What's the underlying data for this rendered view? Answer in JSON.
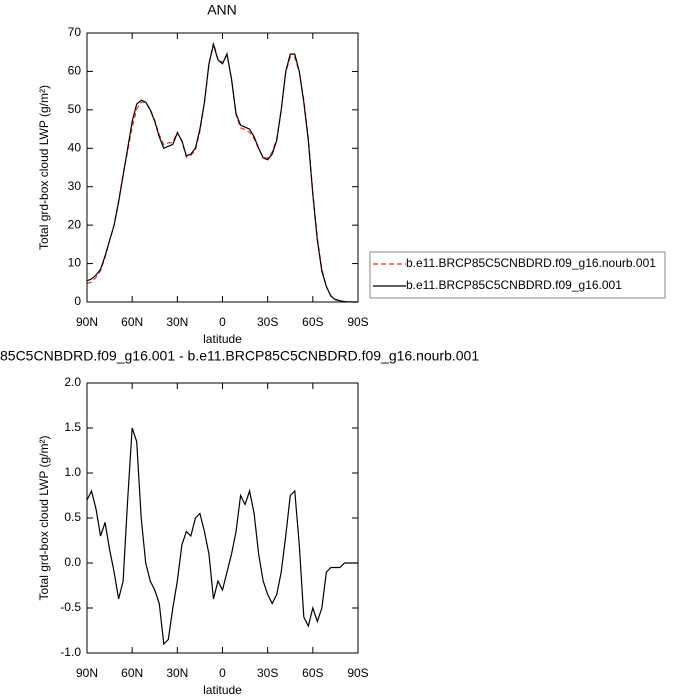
{
  "chart_data": [
    {
      "type": "line",
      "title": "ANN",
      "xlabel": "latitude",
      "ylabel": "Total grd-box cloud LWP (g/m²)",
      "x": [
        90,
        87,
        84,
        81,
        78,
        75,
        72,
        69,
        66,
        63,
        60,
        57,
        54,
        51,
        48,
        45,
        42,
        39,
        36,
        33,
        30,
        27,
        24,
        21,
        18,
        15,
        12,
        9,
        6,
        3,
        0,
        -3,
        -6,
        -9,
        -12,
        -15,
        -18,
        -21,
        -24,
        -27,
        -30,
        -33,
        -36,
        -39,
        -42,
        -45,
        -48,
        -51,
        -54,
        -57,
        -60,
        -63,
        -66,
        -69,
        -72,
        -75,
        -78,
        -81,
        -84,
        -87,
        -90
      ],
      "xlim": [
        90,
        -90
      ],
      "xticks": [
        {
          "value": 90,
          "label": "90N"
        },
        {
          "value": 60,
          "label": "60N"
        },
        {
          "value": 30,
          "label": "30N"
        },
        0,
        {
          "value": -30,
          "label": "30S"
        },
        {
          "value": -60,
          "label": "60S"
        },
        {
          "value": -90,
          "label": "90S"
        }
      ],
      "ylim": [
        0,
        70
      ],
      "yticks": [
        0,
        10,
        20,
        30,
        40,
        50,
        60,
        70
      ],
      "legend": "outside-right",
      "series": [
        {
          "name": "b.e11.BRCP85C5CNBDRD.f09_g16.nourb.001",
          "color": "#e0302c",
          "linestyle": "dashed",
          "values": [
            4.8,
            5.2,
            6.4,
            8.2,
            11.6,
            15.9,
            20.1,
            26.4,
            33.2,
            39.3,
            45.5,
            50.2,
            52.0,
            52.0,
            50.2,
            47.3,
            43.5,
            40.9,
            41.4,
            41.5,
            44.2,
            41.8,
            37.7,
            38.2,
            39.5,
            44.5,
            51.7,
            61.9,
            67.4,
            63.2,
            62.3,
            64.6,
            57.9,
            48.7,
            45.3,
            44.9,
            44.2,
            42.5,
            39.9,
            37.7,
            37.4,
            39.0,
            42.4,
            50.1,
            59.7,
            63.8,
            63.7,
            59.8,
            52.6,
            42.7,
            28.5,
            16.7,
            8.5,
            4.1,
            1.6,
            0.7,
            0.4,
            0.1,
            0.1,
            0,
            0
          ]
        },
        {
          "name": "b.e11.BRCP85C5CNBDRD.f09_g16.001",
          "color": "#000000",
          "linestyle": "solid",
          "values": [
            5.5,
            6,
            7,
            8.5,
            12,
            16,
            20,
            26,
            33,
            40,
            47,
            51.5,
            52.5,
            52,
            50,
            47,
            43,
            40,
            40.5,
            41,
            44,
            42,
            38,
            38.5,
            40,
            45,
            52,
            62,
            67,
            63,
            62,
            64.5,
            58,
            49,
            46,
            45.5,
            45,
            43,
            40,
            37.5,
            37,
            38.5,
            42,
            50,
            60,
            64.5,
            64.5,
            60,
            52,
            42,
            28,
            16,
            8,
            4,
            1.5,
            0.6,
            0.3,
            0.1,
            0.05,
            0,
            0
          ]
        }
      ]
    },
    {
      "type": "line",
      "title": "85C5CNBDRD.f09_g16.001 - b.e11.BRCP85C5CNBDRD.f09_g16.nourb.001",
      "xlabel": "latitude",
      "ylabel": "Total grd-box cloud LWP (g/m²)",
      "x": [
        90,
        87,
        84,
        81,
        78,
        75,
        72,
        69,
        66,
        63,
        60,
        57,
        54,
        51,
        48,
        45,
        42,
        39,
        36,
        33,
        30,
        27,
        24,
        21,
        18,
        15,
        12,
        9,
        6,
        3,
        0,
        -3,
        -6,
        -9,
        -12,
        -15,
        -18,
        -21,
        -24,
        -27,
        -30,
        -33,
        -36,
        -39,
        -42,
        -45,
        -48,
        -51,
        -54,
        -57,
        -60,
        -63,
        -66,
        -69,
        -72,
        -75,
        -78,
        -81,
        -84,
        -87,
        -90
      ],
      "xlim": [
        90,
        -90
      ],
      "xticks": [
        {
          "value": 90,
          "label": "90N"
        },
        {
          "value": 60,
          "label": "60N"
        },
        {
          "value": 30,
          "label": "30N"
        },
        0,
        {
          "value": -30,
          "label": "30S"
        },
        {
          "value": -60,
          "label": "60S"
        },
        {
          "value": -90,
          "label": "90S"
        }
      ],
      "ylim": [
        -1,
        2
      ],
      "yticks": [
        {
          "value": -1,
          "label": "-1.0"
        },
        -0.5,
        {
          "value": 0,
          "label": "0.0"
        },
        0.5,
        {
          "value": 1,
          "label": "1.0"
        },
        1.5,
        {
          "value": 2,
          "label": "2.0"
        }
      ],
      "series": [
        {
          "color": "#000000",
          "linestyle": "solid",
          "values": [
            0.7,
            0.8,
            0.6,
            0.3,
            0.45,
            0.15,
            -0.1,
            -0.4,
            -0.2,
            0.7,
            1.5,
            1.35,
            0.5,
            0.0,
            -0.2,
            -0.3,
            -0.45,
            -0.9,
            -0.85,
            -0.5,
            -0.2,
            0.2,
            0.35,
            0.3,
            0.5,
            0.55,
            0.35,
            0.1,
            -0.4,
            -0.2,
            -0.3,
            -0.1,
            0.1,
            0.35,
            0.75,
            0.65,
            0.8,
            0.55,
            0.1,
            -0.2,
            -0.35,
            -0.45,
            -0.35,
            -0.1,
            0.3,
            0.75,
            0.8,
            0.2,
            -0.6,
            -0.7,
            -0.5,
            -0.65,
            -0.5,
            -0.1,
            -0.05,
            -0.05,
            -0.05,
            0,
            0,
            0,
            0
          ]
        }
      ]
    }
  ]
}
